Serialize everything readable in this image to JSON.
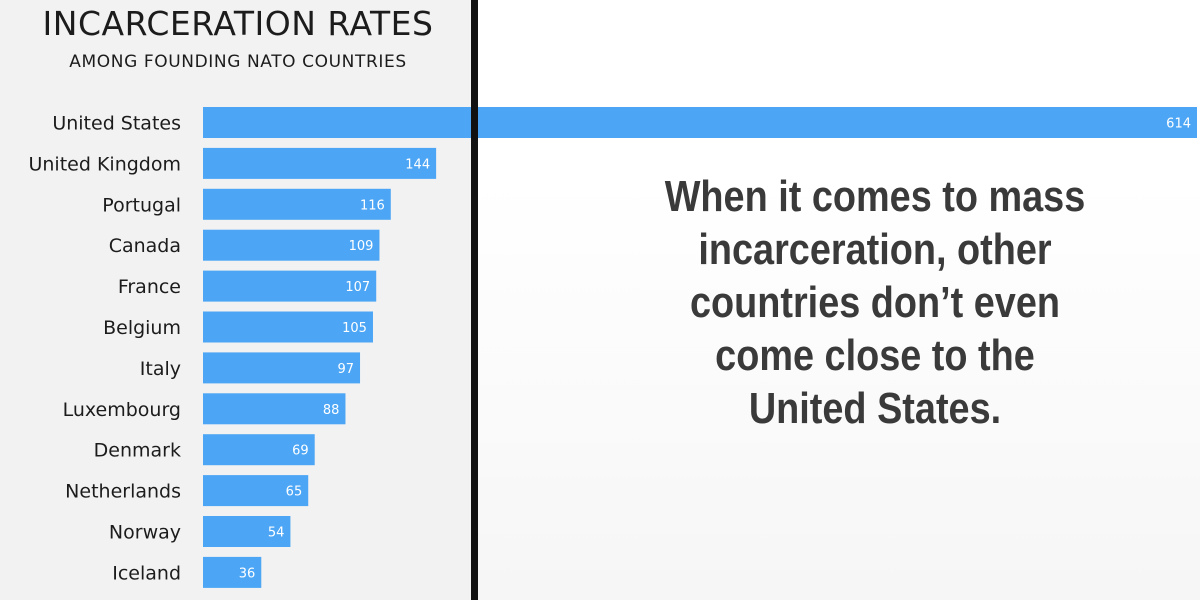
{
  "chart_data": {
    "type": "bar",
    "orientation": "horizontal",
    "title": "INCARCERATION RATES",
    "subtitle": "AMONG FOUNDING NATO COUNTRIES",
    "categories": [
      "United States",
      "United Kingdom",
      "Portugal",
      "Canada",
      "France",
      "Belgium",
      "Italy",
      "Luxembourg",
      "Denmark",
      "Netherlands",
      "Norway",
      "Iceland"
    ],
    "values": [
      614,
      144,
      116,
      109,
      107,
      105,
      97,
      88,
      69,
      65,
      54,
      36
    ],
    "xlim": [
      0,
      614
    ],
    "grid": false,
    "bar_color": "#4da6f5",
    "value_label_color": "#ffffff"
  },
  "callout": {
    "text": "When it comes to mass incarceration, other countries don’t even come close to the United States."
  },
  "colors": {
    "left_background": "#f2f2f2",
    "divider": "#111111",
    "text": "#1c1c1c",
    "callout_text": "#3a3a3a"
  }
}
